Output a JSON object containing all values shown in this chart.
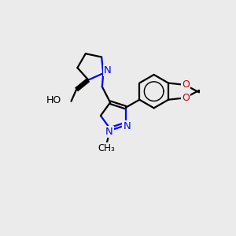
{
  "background_color": "#ebebeb",
  "bond_color": "#000000",
  "N_color": "#0000ff",
  "O_color": "#cc0000",
  "line_width": 1.6,
  "figsize": [
    3.0,
    3.0
  ],
  "dpi": 100,
  "xlim": [
    0,
    10
  ],
  "ylim": [
    0,
    10
  ]
}
